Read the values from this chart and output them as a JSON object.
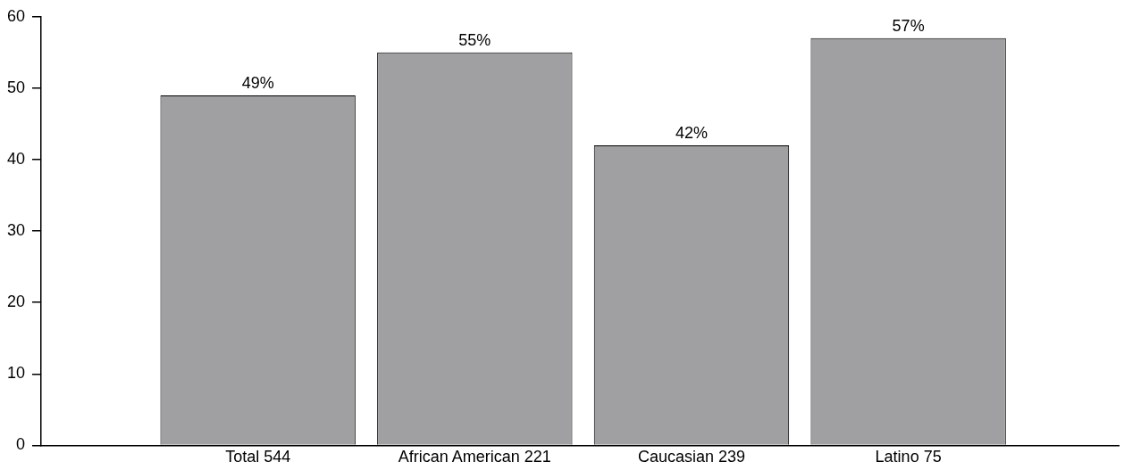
{
  "chart_data": {
    "type": "bar",
    "categories": [
      "Total 544",
      "African American 221",
      "Caucasian 239",
      "Latino 75"
    ],
    "values": [
      49,
      55,
      42,
      57
    ],
    "value_labels": [
      "49%",
      "55%",
      "42%",
      "57%"
    ],
    "color": "#a0a0a2",
    "ylim": [
      0,
      60
    ],
    "yticks": [
      0,
      10,
      20,
      30,
      40,
      50,
      60
    ],
    "grid": false,
    "legend": false
  }
}
